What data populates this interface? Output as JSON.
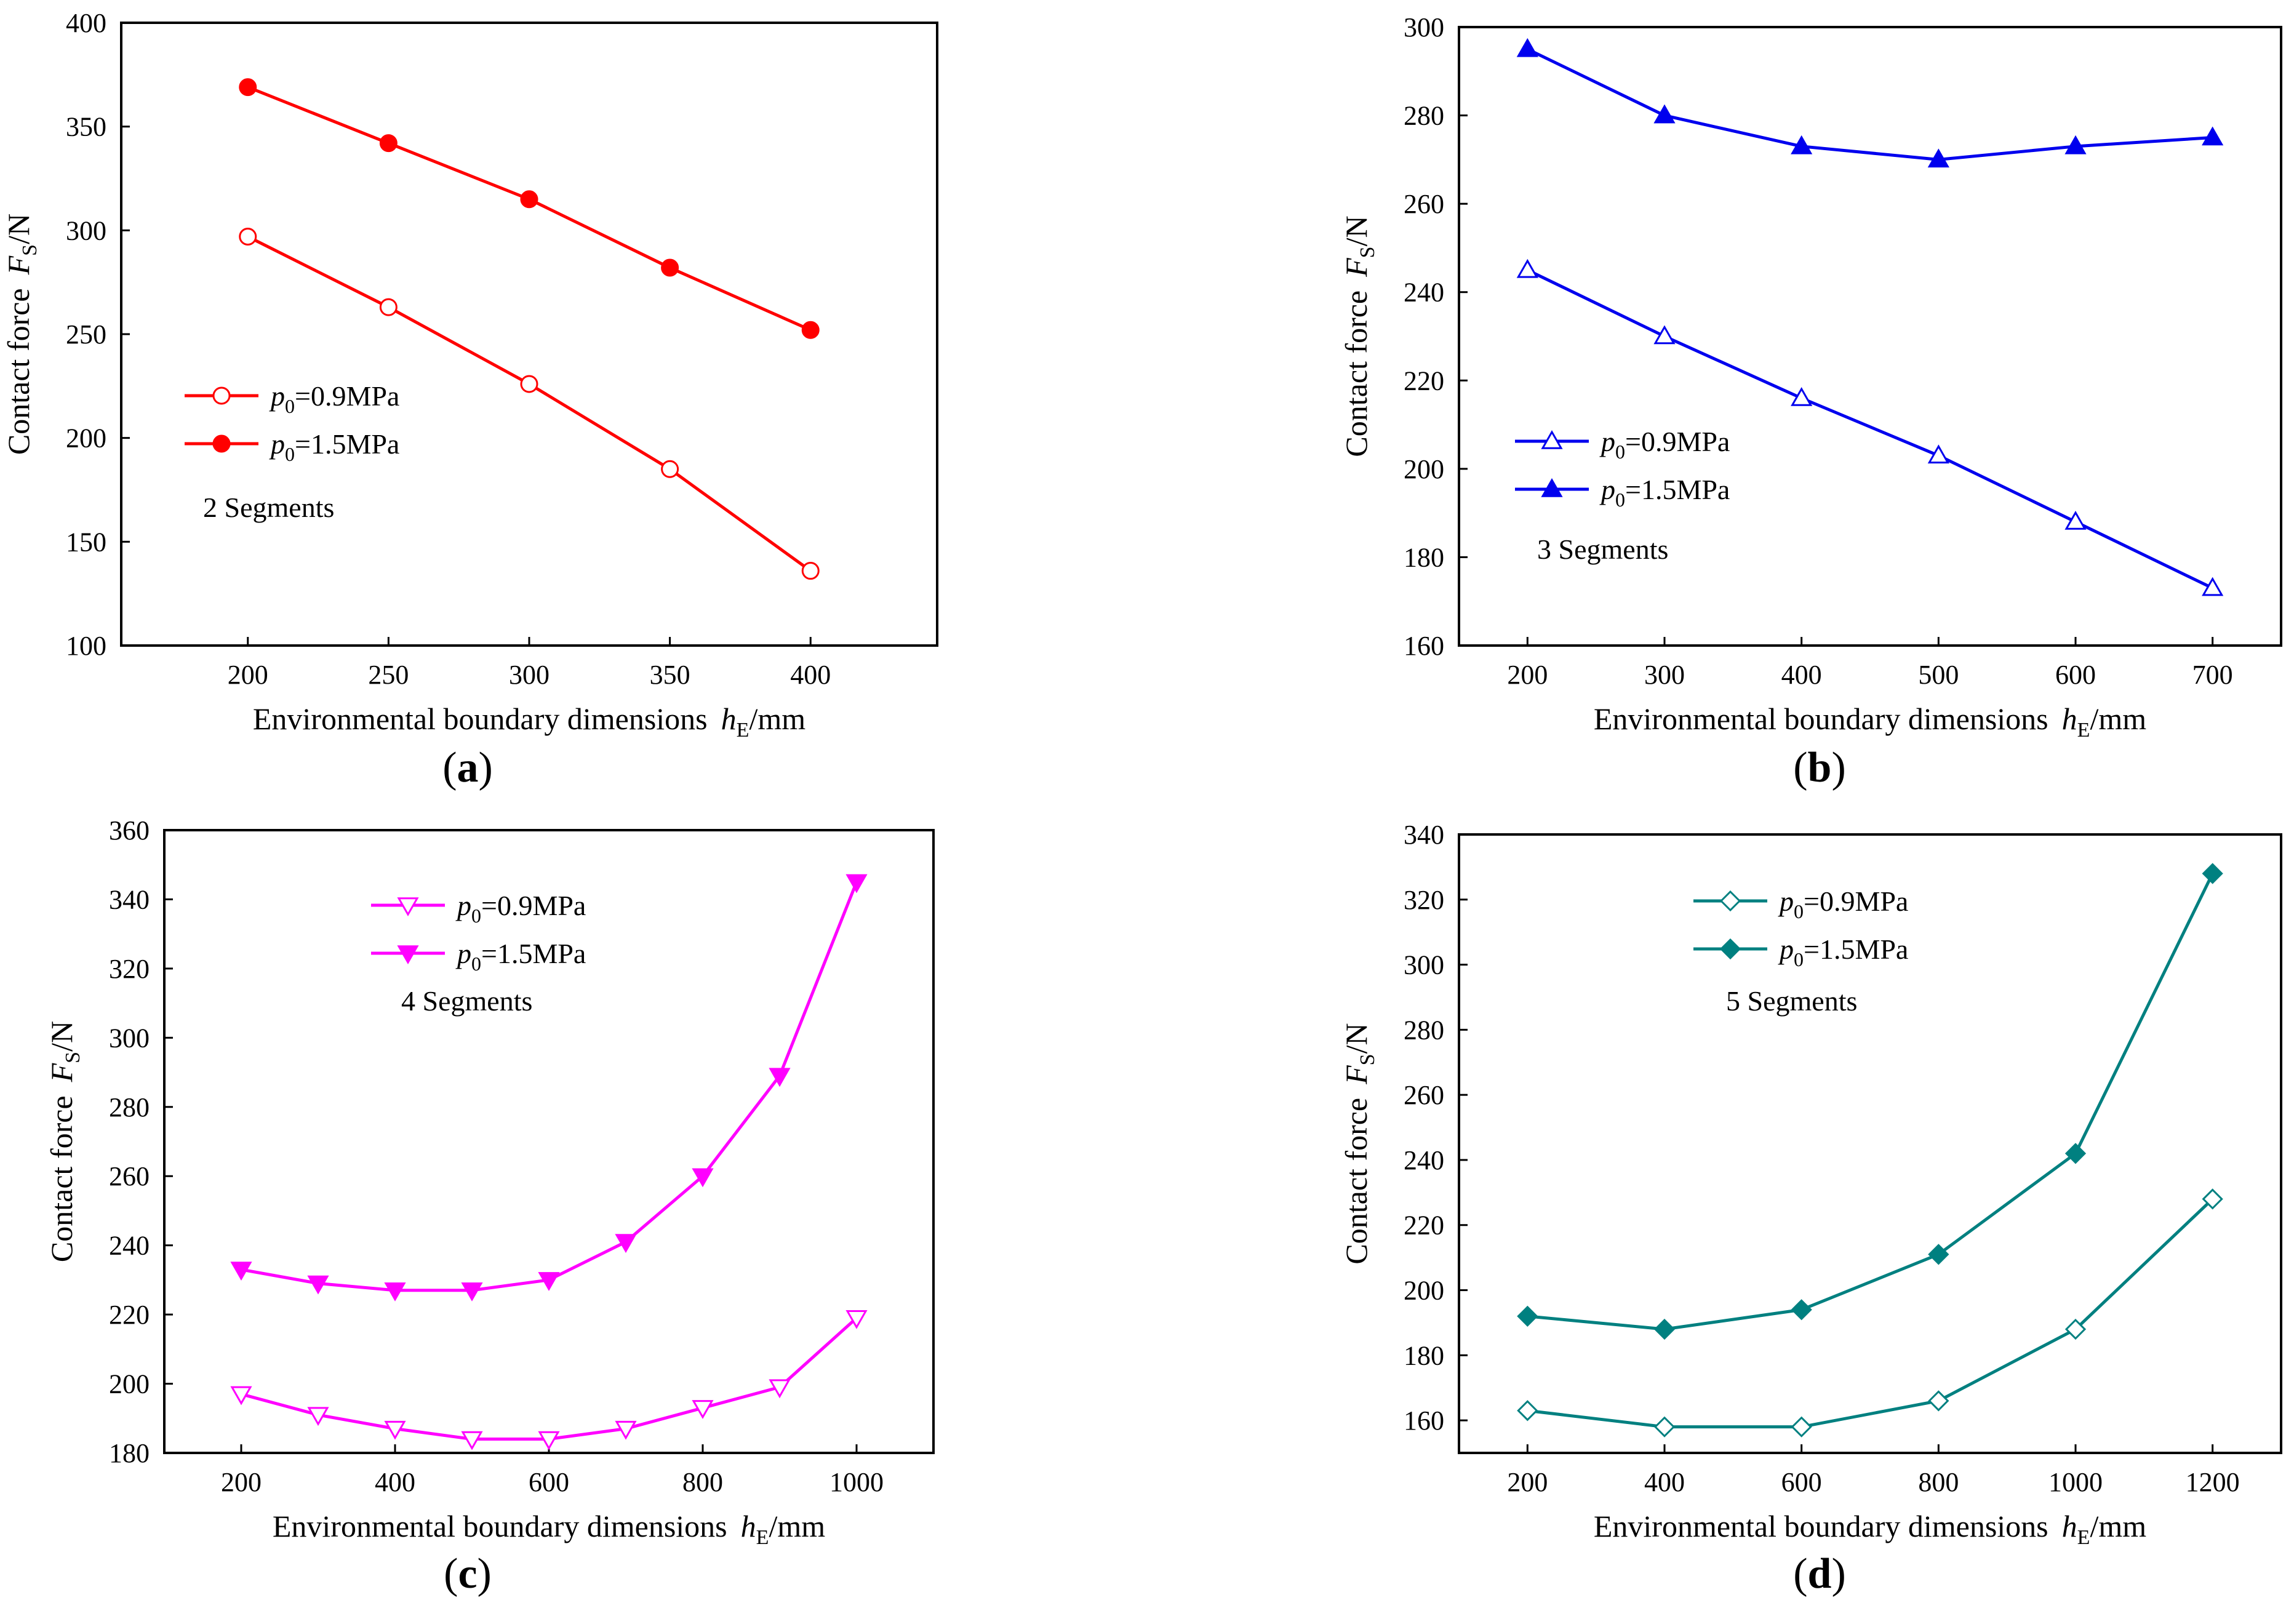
{
  "chart_data": [
    {
      "id": "a",
      "type": "line",
      "panel_label": "a",
      "xlabel": "Environmental boundary dimensions",
      "xsymbol": "h",
      "xsub": "E",
      "xunit": "/mm",
      "ylabel": "Contact force",
      "ysymbol": "F",
      "ysub": "S",
      "yunit": "/N",
      "xlim": [
        155,
        445
      ],
      "ylim": [
        100,
        400
      ],
      "xticks": [
        "200",
        "250",
        "300",
        "350",
        "400"
      ],
      "xtick_values": [
        200,
        250,
        300,
        350,
        400
      ],
      "yticks": [
        "100",
        "150",
        "200",
        "250",
        "300",
        "350",
        "400"
      ],
      "ytick_values": [
        100,
        150,
        200,
        250,
        300,
        350,
        400
      ],
      "annotation": "2  Segments",
      "color": "#ff0000",
      "marker": "circle",
      "legend_position": "left",
      "x": [
        200,
        250,
        300,
        350,
        400
      ],
      "series": [
        {
          "name": "p",
          "sub": "0",
          "value_text": "=0.9MPa",
          "filled": false,
          "values": [
            297,
            263,
            226,
            185,
            136
          ]
        },
        {
          "name": "p",
          "sub": "0",
          "value_text": "=1.5MPa",
          "filled": true,
          "values": [
            369,
            342,
            315,
            282,
            252
          ]
        }
      ]
    },
    {
      "id": "b",
      "type": "line",
      "panel_label": "b",
      "xlabel": "Environmental boundary dimensions",
      "xsymbol": "h",
      "xsub": "E",
      "xunit": "/mm",
      "ylabel": "Contact force",
      "ysymbol": "F",
      "ysub": "S",
      "yunit": "/N",
      "xlim": [
        150,
        750
      ],
      "ylim": [
        160,
        300
      ],
      "xticks": [
        "200",
        "300",
        "400",
        "500",
        "600",
        "700"
      ],
      "xtick_values": [
        200,
        300,
        400,
        500,
        600,
        700
      ],
      "yticks": [
        "160",
        "180",
        "200",
        "220",
        "240",
        "260",
        "280",
        "300"
      ],
      "ytick_values": [
        160,
        180,
        200,
        220,
        240,
        260,
        280,
        300
      ],
      "annotation": "3 Segments",
      "color": "#0000ee",
      "marker": "triangle-up",
      "legend_position": "left",
      "x": [
        200,
        300,
        400,
        500,
        600,
        700
      ],
      "series": [
        {
          "name": "p",
          "sub": "0",
          "value_text": "=0.9MPa",
          "filled": false,
          "values": [
            245,
            230,
            216,
            203,
            188,
            173
          ]
        },
        {
          "name": "p",
          "sub": "0",
          "value_text": "=1.5MPa",
          "filled": true,
          "values": [
            295,
            280,
            273,
            270,
            273,
            275
          ]
        }
      ]
    },
    {
      "id": "c",
      "type": "line",
      "panel_label": "c",
      "xlabel": "Environmental boundary dimensions",
      "xsymbol": "h",
      "xsub": "E",
      "xunit": "/mm",
      "ylabel": "Contact force",
      "ysymbol": "F",
      "ysub": "S",
      "yunit": "/N",
      "xlim": [
        100,
        1100
      ],
      "ylim": [
        180,
        360
      ],
      "xticks": [
        "200",
        "400",
        "600",
        "800",
        "1000"
      ],
      "xtick_values": [
        200,
        400,
        600,
        800,
        1000
      ],
      "yticks": [
        "180",
        "200",
        "220",
        "240",
        "260",
        "280",
        "300",
        "320",
        "340",
        "360"
      ],
      "ytick_values": [
        180,
        200,
        220,
        240,
        260,
        280,
        300,
        320,
        340,
        360
      ],
      "annotation": "4 Segments",
      "color": "#ff00ff",
      "marker": "triangle-down",
      "legend_position": "top-center",
      "x": [
        200,
        300,
        400,
        500,
        600,
        700,
        800,
        900,
        1000
      ],
      "series": [
        {
          "name": "p",
          "sub": "0",
          "value_text": "=0.9MPa",
          "filled": false,
          "values": [
            197,
            191,
            187,
            184,
            184,
            187,
            193,
            199,
            219
          ]
        },
        {
          "name": "p",
          "sub": "0",
          "value_text": "=1.5MPa",
          "filled": true,
          "values": [
            233,
            229,
            227,
            227,
            230,
            241,
            260,
            289,
            345
          ]
        }
      ]
    },
    {
      "id": "d",
      "type": "line",
      "panel_label": "d",
      "xlabel": "Environmental boundary dimensions",
      "xsymbol": "h",
      "xsub": "E",
      "xunit": "/mm",
      "ylabel": "Contact force",
      "ysymbol": "F",
      "ysub": "S",
      "yunit": "/N",
      "xlim": [
        100,
        1300
      ],
      "ylim": [
        150,
        340
      ],
      "xticks": [
        "200",
        "400",
        "600",
        "800",
        "1000",
        "1200"
      ],
      "xtick_values": [
        200,
        400,
        600,
        800,
        1000,
        1200
      ],
      "yticks": [
        "160",
        "180",
        "200",
        "220",
        "240",
        "260",
        "280",
        "300",
        "320",
        "340"
      ],
      "ytick_values": [
        160,
        180,
        200,
        220,
        240,
        260,
        280,
        300,
        320,
        340
      ],
      "annotation": "5 Segments",
      "color": "#008080",
      "marker": "diamond",
      "legend_position": "top-center",
      "x": [
        200,
        400,
        600,
        800,
        1000,
        1200
      ],
      "series": [
        {
          "name": "p",
          "sub": "0",
          "value_text": "=0.9MPa",
          "filled": false,
          "values": [
            163,
            158,
            158,
            166,
            188,
            228
          ]
        },
        {
          "name": "p",
          "sub": "0",
          "value_text": "=1.5MPa",
          "filled": true,
          "values": [
            192,
            188,
            194,
            211,
            242,
            328
          ]
        }
      ]
    }
  ]
}
